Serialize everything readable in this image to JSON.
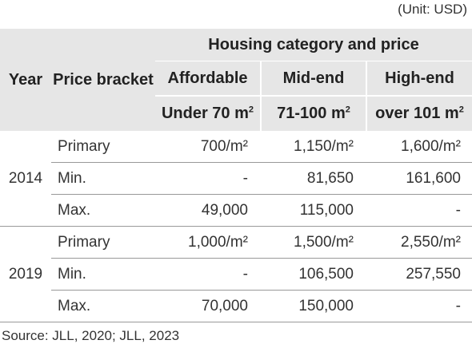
{
  "unit_note": "(Unit: USD)",
  "header": {
    "year": "Year",
    "price_bracket": "Price bracket",
    "group": "Housing category and price",
    "categories": [
      "Affordable",
      "Mid-end",
      "High-end"
    ],
    "sizes": [
      {
        "text": "Under 70 m",
        "sup": "2"
      },
      {
        "text": "71-100 m",
        "sup": "2"
      },
      {
        "text": "over 101 m",
        "sup": "2"
      }
    ]
  },
  "rows": [
    {
      "year": "2014",
      "items": [
        {
          "bracket": "Primary",
          "values": [
            "700/m²",
            "1,150/m²",
            "1,600/m²"
          ]
        },
        {
          "bracket": "Min.",
          "values": [
            "-",
            "81,650",
            "161,600"
          ]
        },
        {
          "bracket": "Max.",
          "values": [
            "49,000",
            "115,000",
            "-"
          ]
        }
      ]
    },
    {
      "year": "2019",
      "items": [
        {
          "bracket": "Primary",
          "values": [
            "1,000/m²",
            "1,500/m²",
            "2,550/m²"
          ]
        },
        {
          "bracket": "Min.",
          "values": [
            "-",
            "106,500",
            "257,550"
          ]
        },
        {
          "bracket": "Max.",
          "values": [
            "70,000",
            "150,000",
            "-"
          ]
        }
      ]
    }
  ],
  "source": "Source: JLL, 2020; JLL, 2023"
}
